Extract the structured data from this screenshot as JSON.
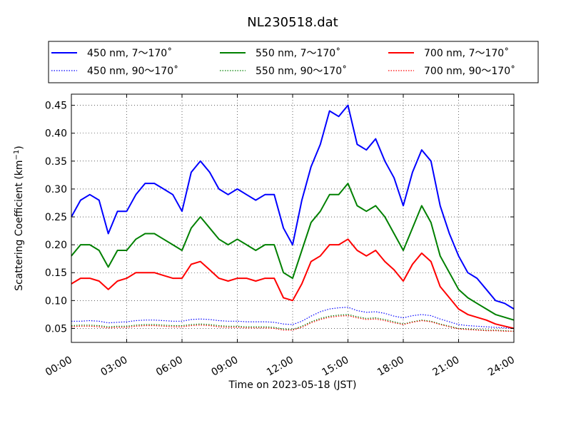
{
  "chart_data": {
    "type": "line",
    "title": "NL230518.dat",
    "xlabel": "Time on 2023-05-18 (JST)",
    "ylabel": "Scattering Coefficient (km",
    "ylabel_sup": "−1",
    "ylabel_close": ")",
    "xlim": [
      "00:00",
      "24:00"
    ],
    "ylim": [
      0.025,
      0.47
    ],
    "x_ticks": [
      "00:00",
      "03:00",
      "06:00",
      "09:00",
      "12:00",
      "15:00",
      "18:00",
      "21:00",
      "24:00"
    ],
    "y_ticks": [
      "0.05",
      "0.10",
      "0.15",
      "0.20",
      "0.25",
      "0.30",
      "0.35",
      "0.40",
      "0.45"
    ],
    "grid": true,
    "legend_position": "top",
    "x": [
      "00:00",
      "00:30",
      "01:00",
      "01:30",
      "02:00",
      "02:30",
      "03:00",
      "03:30",
      "04:00",
      "04:30",
      "05:00",
      "05:30",
      "06:00",
      "06:30",
      "07:00",
      "07:30",
      "08:00",
      "08:30",
      "09:00",
      "09:30",
      "10:00",
      "10:30",
      "11:00",
      "11:30",
      "12:00",
      "12:30",
      "13:00",
      "13:30",
      "14:00",
      "14:30",
      "15:00",
      "15:30",
      "16:00",
      "16:30",
      "17:00",
      "17:30",
      "18:00",
      "18:30",
      "19:00",
      "19:30",
      "20:00",
      "20:30",
      "21:00",
      "21:30",
      "22:00",
      "22:30",
      "23:00",
      "23:30",
      "24:00"
    ],
    "series": [
      {
        "name": "450 nm, 7～170˚",
        "color": "#0000ff",
        "style": "solid",
        "values": [
          0.25,
          0.28,
          0.29,
          0.28,
          0.22,
          0.26,
          0.26,
          0.29,
          0.31,
          0.31,
          0.3,
          0.29,
          0.26,
          0.33,
          0.35,
          0.33,
          0.3,
          0.29,
          0.3,
          0.29,
          0.28,
          0.29,
          0.29,
          0.23,
          0.2,
          0.28,
          0.34,
          0.38,
          0.44,
          0.43,
          0.45,
          0.38,
          0.37,
          0.39,
          0.35,
          0.32,
          0.27,
          0.33,
          0.37,
          0.35,
          0.27,
          0.22,
          0.18,
          0.15,
          0.14,
          0.12,
          0.1,
          0.095,
          0.085
        ]
      },
      {
        "name": "550 nm, 7～170˚",
        "color": "#008000",
        "style": "solid",
        "values": [
          0.18,
          0.2,
          0.2,
          0.19,
          0.16,
          0.19,
          0.19,
          0.21,
          0.22,
          0.22,
          0.21,
          0.2,
          0.19,
          0.23,
          0.25,
          0.23,
          0.21,
          0.2,
          0.21,
          0.2,
          0.19,
          0.2,
          0.2,
          0.15,
          0.14,
          0.19,
          0.24,
          0.26,
          0.29,
          0.29,
          0.31,
          0.27,
          0.26,
          0.27,
          0.25,
          0.22,
          0.19,
          0.23,
          0.27,
          0.24,
          0.18,
          0.15,
          0.12,
          0.105,
          0.095,
          0.085,
          0.075,
          0.07,
          0.065
        ]
      },
      {
        "name": "700 nm, 7～170˚",
        "color": "#ff0000",
        "style": "solid",
        "values": [
          0.13,
          0.14,
          0.14,
          0.135,
          0.12,
          0.135,
          0.14,
          0.15,
          0.15,
          0.15,
          0.145,
          0.14,
          0.14,
          0.165,
          0.17,
          0.155,
          0.14,
          0.135,
          0.14,
          0.14,
          0.135,
          0.14,
          0.14,
          0.105,
          0.1,
          0.13,
          0.17,
          0.18,
          0.2,
          0.2,
          0.21,
          0.19,
          0.18,
          0.19,
          0.17,
          0.155,
          0.135,
          0.165,
          0.185,
          0.17,
          0.125,
          0.105,
          0.085,
          0.075,
          0.07,
          0.065,
          0.058,
          0.054,
          0.05
        ]
      },
      {
        "name": "450 nm, 90～170˚",
        "color": "#0000ff",
        "style": "dotted",
        "values": [
          0.063,
          0.063,
          0.064,
          0.063,
          0.06,
          0.061,
          0.062,
          0.064,
          0.065,
          0.065,
          0.064,
          0.063,
          0.063,
          0.066,
          0.067,
          0.066,
          0.064,
          0.063,
          0.063,
          0.062,
          0.062,
          0.062,
          0.061,
          0.058,
          0.057,
          0.063,
          0.072,
          0.08,
          0.085,
          0.087,
          0.088,
          0.082,
          0.079,
          0.08,
          0.077,
          0.072,
          0.069,
          0.073,
          0.075,
          0.073,
          0.067,
          0.062,
          0.057,
          0.055,
          0.054,
          0.053,
          0.052,
          0.051,
          0.05
        ]
      },
      {
        "name": "550 nm, 90～170˚",
        "color": "#008000",
        "style": "dotted",
        "values": [
          0.055,
          0.056,
          0.056,
          0.055,
          0.053,
          0.054,
          0.054,
          0.056,
          0.057,
          0.057,
          0.056,
          0.055,
          0.055,
          0.057,
          0.058,
          0.057,
          0.055,
          0.054,
          0.054,
          0.053,
          0.053,
          0.053,
          0.052,
          0.049,
          0.048,
          0.054,
          0.062,
          0.068,
          0.072,
          0.074,
          0.075,
          0.071,
          0.068,
          0.069,
          0.066,
          0.062,
          0.058,
          0.062,
          0.065,
          0.063,
          0.058,
          0.054,
          0.05,
          0.049,
          0.048,
          0.047,
          0.047,
          0.046,
          0.045
        ]
      },
      {
        "name": "700 nm, 90～170˚",
        "color": "#ff0000",
        "style": "dotted",
        "values": [
          0.053,
          0.054,
          0.054,
          0.053,
          0.051,
          0.052,
          0.052,
          0.054,
          0.055,
          0.055,
          0.054,
          0.053,
          0.053,
          0.055,
          0.056,
          0.055,
          0.053,
          0.052,
          0.052,
          0.051,
          0.051,
          0.051,
          0.05,
          0.047,
          0.047,
          0.052,
          0.06,
          0.066,
          0.07,
          0.072,
          0.073,
          0.069,
          0.066,
          0.067,
          0.064,
          0.06,
          0.057,
          0.061,
          0.064,
          0.062,
          0.057,
          0.053,
          0.049,
          0.048,
          0.047,
          0.046,
          0.046,
          0.045,
          0.045
        ]
      }
    ]
  }
}
